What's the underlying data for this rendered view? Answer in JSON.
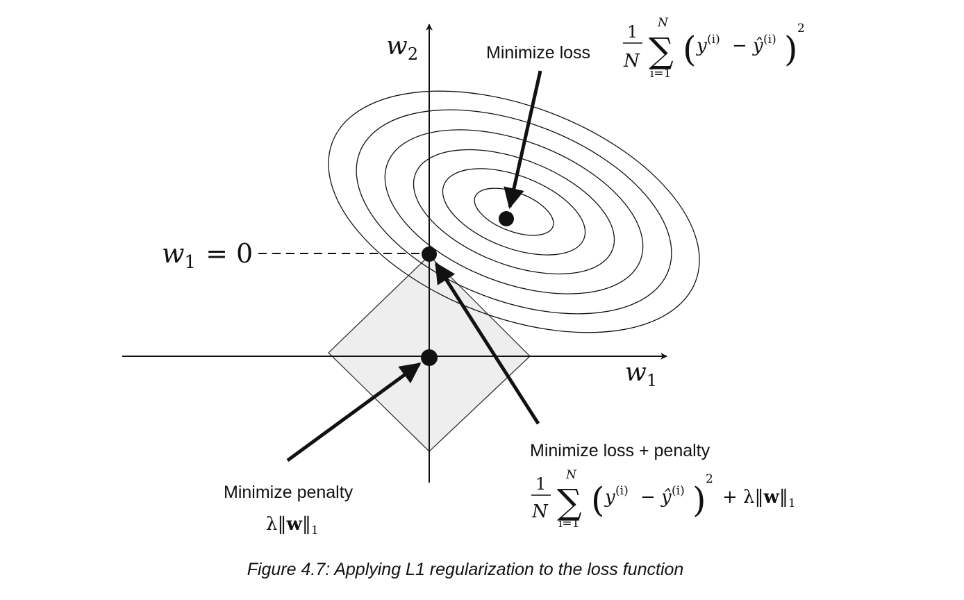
{
  "axes": {
    "x_label_base": "w",
    "x_label_sub": "1",
    "y_label_base": "w",
    "y_label_sub": "2"
  },
  "annotations": {
    "minimize_loss": {
      "label": "Minimize loss",
      "frac_num": "1",
      "frac_den": "N",
      "sum_top": "N",
      "sum_sign": "∑",
      "sum_bottom": "i=1",
      "y_base": "y",
      "sup": "(i)",
      "minus": "−",
      "yhat_base": "ŷ",
      "open_paren": "(",
      "close_paren": ")",
      "square": "2"
    },
    "minimize_penalty": {
      "label": "Minimize penalty",
      "formula_prefix": "λ‖",
      "formula_bold": "w",
      "formula_suffix": "‖",
      "formula_sub": "1"
    },
    "minimize_loss_penalty": {
      "label": "Minimize loss + penalty",
      "frac_num": "1",
      "frac_den": "N",
      "sum_top": "N",
      "sum_sign": "∑",
      "sum_bottom": "i=1",
      "y_base": "y",
      "sup": "(i)",
      "minus": "−",
      "yhat_base": "ŷ",
      "open_paren": "(",
      "close_paren": ")",
      "square": "2",
      "penalty_prefix": "+ λ‖",
      "penalty_bold": "w",
      "penalty_suffix": "‖",
      "penalty_sub": "1"
    },
    "w1_zero": {
      "base": "w",
      "sub": "1",
      "rest": "= 0"
    }
  },
  "caption": "Figure 4.7: Applying L1 regularization to the loss function",
  "colors": {
    "ink": "#111111",
    "diamond_fill": "#eeeeee",
    "diamond_stroke": "#333333"
  }
}
